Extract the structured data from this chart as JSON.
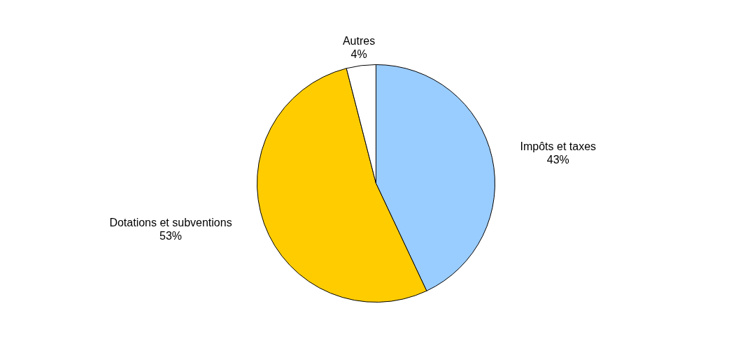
{
  "chart_data": {
    "type": "pie",
    "categories": [
      "Impôts et taxes",
      "Dotations et subventions",
      "Autres"
    ],
    "values": [
      43,
      53,
      4
    ],
    "colors": [
      "#99ccff",
      "#ffcc00",
      "#ffffff"
    ],
    "value_labels": [
      "43%",
      "53%",
      "4%"
    ]
  }
}
